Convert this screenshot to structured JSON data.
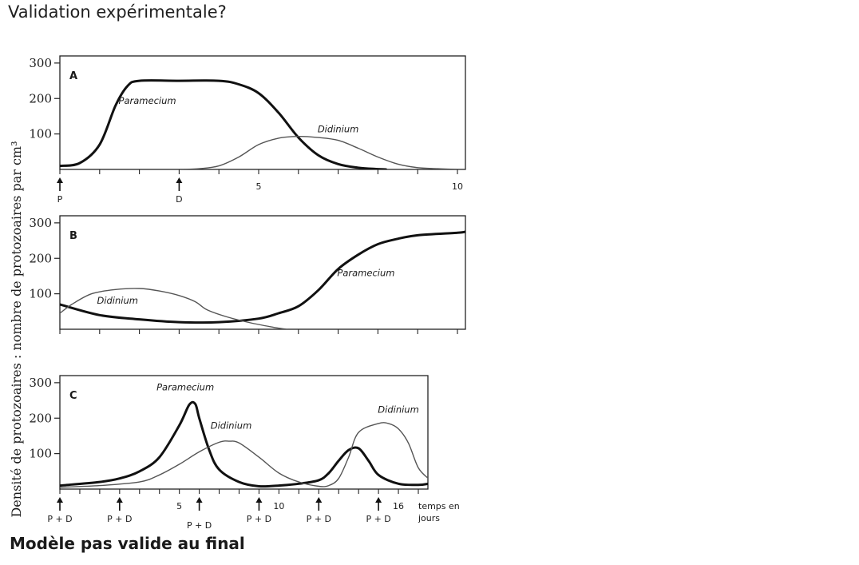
{
  "slide": {
    "title": "Validation expérimentale?",
    "note": "Modèle pas valide au final"
  },
  "chart_data": [
    {
      "type": "line",
      "panel": "A",
      "ylabel": "Densité de protozoaires : nombre de protozoaires  par cm³",
      "xlabel": "",
      "xlim": [
        0,
        10.2
      ],
      "ylim": [
        0,
        320
      ],
      "yticks": [
        100,
        200,
        300
      ],
      "xticks": [
        1,
        2,
        3,
        4,
        5,
        6,
        7,
        8,
        9,
        10
      ],
      "xtick_labels": [
        {
          "x": 5,
          "label": "5"
        },
        {
          "x": 10,
          "label": "10"
        }
      ],
      "series": [
        {
          "name": "Paramecium",
          "style": "thick",
          "points": [
            [
              0,
              10
            ],
            [
              0.5,
              18
            ],
            [
              1,
              70
            ],
            [
              1.4,
              180
            ],
            [
              1.7,
              235
            ],
            [
              2,
              250
            ],
            [
              3,
              250
            ],
            [
              4,
              250
            ],
            [
              4.5,
              240
            ],
            [
              5,
              215
            ],
            [
              5.5,
              160
            ],
            [
              6,
              90
            ],
            [
              6.5,
              40
            ],
            [
              7,
              15
            ],
            [
              7.5,
              5
            ],
            [
              8,
              1
            ],
            [
              8.2,
              0
            ]
          ]
        },
        {
          "name": "Didinium",
          "style": "thin",
          "points": [
            [
              3,
              0
            ],
            [
              3.5,
              2
            ],
            [
              4,
              10
            ],
            [
              4.5,
              35
            ],
            [
              5,
              70
            ],
            [
              5.5,
              88
            ],
            [
              6,
              93
            ],
            [
              6.5,
              90
            ],
            [
              7,
              82
            ],
            [
              7.5,
              60
            ],
            [
              8,
              35
            ],
            [
              8.5,
              15
            ],
            [
              9,
              5
            ],
            [
              9.5,
              2
            ],
            [
              10,
              0
            ]
          ]
        }
      ],
      "series_labels": [
        {
          "text": "Paramecium",
          "x": 2.2,
          "y": 185
        },
        {
          "text": "Didinium",
          "x": 7.0,
          "y": 105
        }
      ],
      "markers": [
        {
          "x": 0,
          "label": "P"
        },
        {
          "x": 3,
          "label": "D"
        }
      ]
    },
    {
      "type": "line",
      "panel": "B",
      "xlim": [
        0,
        10.2
      ],
      "ylim": [
        0,
        320
      ],
      "yticks": [
        100,
        200,
        300
      ],
      "xticks": [
        1,
        2,
        3,
        4,
        5,
        6,
        7,
        8,
        9,
        10
      ],
      "series": [
        {
          "name": "Paramecium",
          "style": "thick",
          "points": [
            [
              0,
              70
            ],
            [
              1,
              40
            ],
            [
              2,
              28
            ],
            [
              3,
              20
            ],
            [
              4,
              20
            ],
            [
              5,
              30
            ],
            [
              5.5,
              45
            ],
            [
              6,
              65
            ],
            [
              6.5,
              110
            ],
            [
              7,
              170
            ],
            [
              7.5,
              210
            ],
            [
              8,
              240
            ],
            [
              8.5,
              255
            ],
            [
              9,
              265
            ],
            [
              10,
              272
            ],
            [
              10.2,
              275
            ]
          ]
        },
        {
          "name": "Didinium",
          "style": "thin",
          "points": [
            [
              0,
              45
            ],
            [
              0.3,
              70
            ],
            [
              0.8,
              100
            ],
            [
              1.4,
              112
            ],
            [
              2,
              115
            ],
            [
              2.5,
              108
            ],
            [
              3,
              95
            ],
            [
              3.4,
              78
            ],
            [
              3.7,
              55
            ],
            [
              4.2,
              35
            ],
            [
              4.8,
              18
            ],
            [
              5.4,
              5
            ],
            [
              5.7,
              0
            ]
          ]
        }
      ],
      "series_labels": [
        {
          "text": "Paramecium",
          "x": 7.7,
          "y": 150
        },
        {
          "text": "Didinium",
          "x": 1.45,
          "y": 72
        }
      ]
    },
    {
      "type": "line",
      "panel": "C",
      "xlim": [
        0,
        18.5
      ],
      "ylim": [
        0,
        320
      ],
      "yticks": [
        100,
        200,
        300
      ],
      "xticks": [
        1,
        2,
        3,
        4,
        5,
        6,
        7,
        8,
        9,
        10,
        11,
        12,
        13,
        14,
        15,
        16,
        17,
        18
      ],
      "xtick_labels": [
        {
          "x": 6,
          "label": "5"
        },
        {
          "x": 11,
          "label": "10"
        },
        {
          "x": 17,
          "label": "16"
        }
      ],
      "x_unit_label": "temps en jours",
      "series": [
        {
          "name": "Paramecium",
          "style": "thick",
          "points": [
            [
              0,
              10
            ],
            [
              2,
              20
            ],
            [
              3,
              30
            ],
            [
              4,
              50
            ],
            [
              5,
              90
            ],
            [
              6,
              180
            ],
            [
              6.5,
              238
            ],
            [
              6.8,
              240
            ],
            [
              7,
              200
            ],
            [
              7.5,
              110
            ],
            [
              8,
              55
            ],
            [
              9,
              20
            ],
            [
              10,
              8
            ],
            [
              11,
              10
            ],
            [
              12,
              15
            ],
            [
              13,
              25
            ],
            [
              13.5,
              45
            ],
            [
              14,
              80
            ],
            [
              14.5,
              110
            ],
            [
              15,
              115
            ],
            [
              15.5,
              80
            ],
            [
              16,
              40
            ],
            [
              17,
              15
            ],
            [
              18,
              12
            ],
            [
              18.5,
              15
            ]
          ]
        },
        {
          "name": "Didinium",
          "style": "thin",
          "points": [
            [
              0,
              5
            ],
            [
              2,
              10
            ],
            [
              4,
              20
            ],
            [
              5,
              40
            ],
            [
              6,
              70
            ],
            [
              7,
              105
            ],
            [
              8,
              132
            ],
            [
              8.5,
              135
            ],
            [
              9,
              130
            ],
            [
              10,
              90
            ],
            [
              11,
              45
            ],
            [
              12,
              20
            ],
            [
              13,
              8
            ],
            [
              13.5,
              10
            ],
            [
              14,
              30
            ],
            [
              14.5,
              90
            ],
            [
              15,
              160
            ],
            [
              16,
              185
            ],
            [
              16.5,
              185
            ],
            [
              17,
              170
            ],
            [
              17.5,
              130
            ],
            [
              18,
              60
            ],
            [
              18.5,
              30
            ]
          ]
        }
      ],
      "series_labels": [
        {
          "text": "Paramecium",
          "x": 6.3,
          "y": 278
        },
        {
          "text": "Didinium",
          "x": 8.6,
          "y": 170
        },
        {
          "text": "Didinium",
          "x": 17.0,
          "y": 215
        }
      ],
      "markers": [
        {
          "x": 0,
          "label": "P + D"
        },
        {
          "x": 3,
          "label": "P + D"
        },
        {
          "x": 7,
          "label": "P + D"
        },
        {
          "x": 10,
          "label": "P + D"
        },
        {
          "x": 13,
          "label": "P + D"
        },
        {
          "x": 16,
          "label": "P + D"
        }
      ]
    }
  ]
}
